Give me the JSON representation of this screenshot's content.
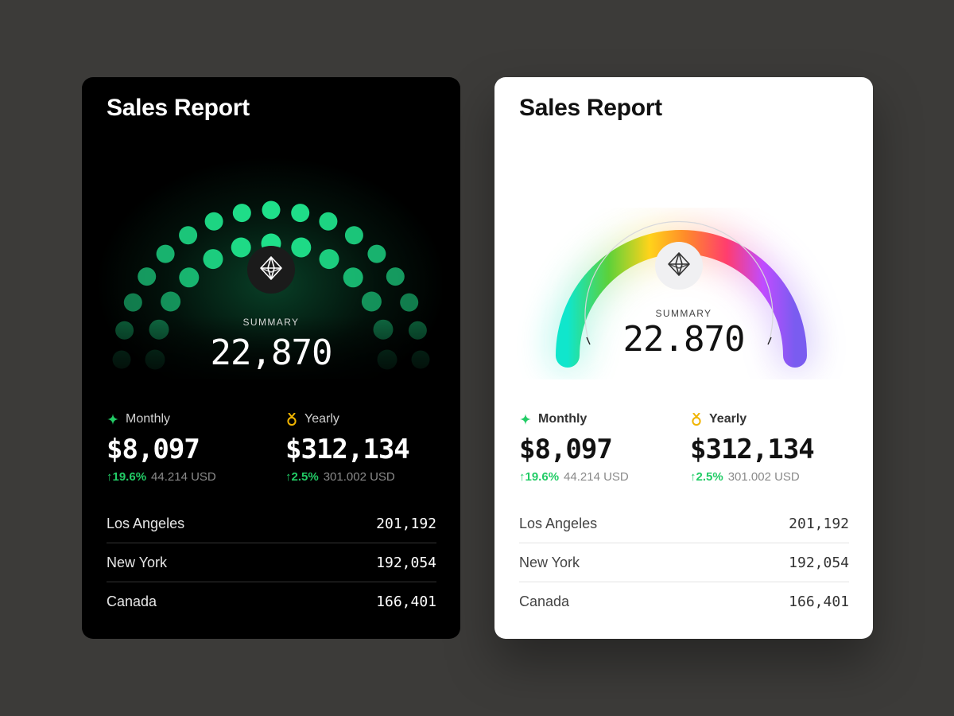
{
  "cards": [
    {
      "theme": "dark",
      "title": "Sales Report",
      "summary_label": "SUMMARY",
      "summary_value": "22,870",
      "accent": "#1fe08a",
      "monthly": {
        "label": "Monthly",
        "icon": "sparkle-icon",
        "value": "$8,097",
        "change": "↑19.6%",
        "usd": "44.214 USD"
      },
      "yearly": {
        "label": "Yearly",
        "icon": "medal-icon",
        "value": "$312,134",
        "change": "↑2.5%",
        "usd": "301.002 USD"
      },
      "locations": [
        {
          "name": "Los Angeles",
          "value": "201,192"
        },
        {
          "name": "New York",
          "value": "192,054"
        },
        {
          "name": "Canada",
          "value": "166,401"
        }
      ]
    },
    {
      "theme": "light",
      "title": "Sales Report",
      "summary_label": "SUMMARY",
      "summary_value": "22.870",
      "gradient": [
        "#10e6cc",
        "#5cd13a",
        "#ffd31a",
        "#ff8a2a",
        "#ff3d6e",
        "#c04cff",
        "#7a5cf0"
      ],
      "monthly": {
        "label": "Monthly",
        "icon": "sparkle-icon",
        "value": "$8,097",
        "change": "↑19.6%",
        "usd": "44.214 USD"
      },
      "yearly": {
        "label": "Yearly",
        "icon": "medal-icon",
        "value": "$312,134",
        "change": "↑2.5%",
        "usd": "301.002 USD"
      },
      "locations": [
        {
          "name": "Los Angeles",
          "value": "201,192"
        },
        {
          "name": "New York",
          "value": "192,054"
        },
        {
          "name": "Canada",
          "value": "166,401"
        }
      ]
    }
  ]
}
